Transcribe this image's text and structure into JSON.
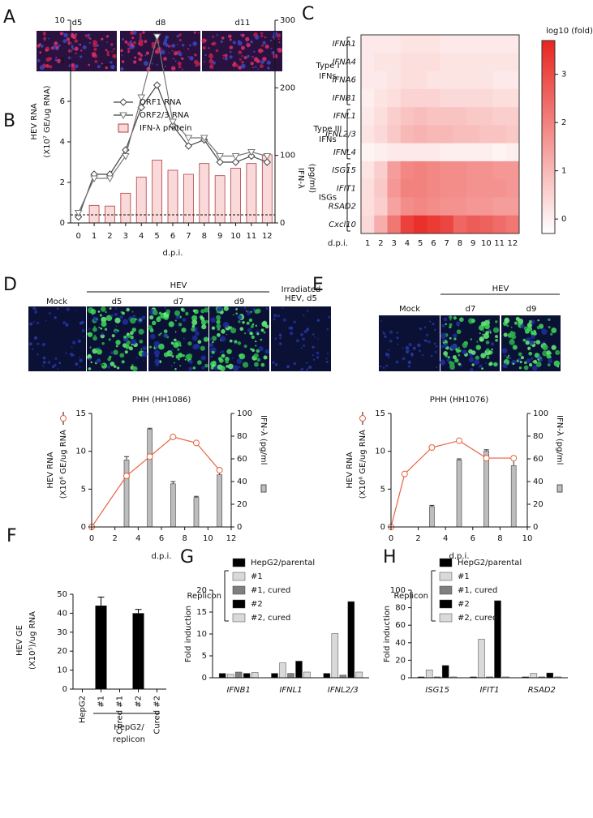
{
  "panel_labels": [
    "A",
    "B",
    "C",
    "D",
    "E",
    "F",
    "G",
    "H"
  ],
  "images": {
    "A": [
      "d5",
      "d8",
      "d11"
    ],
    "D": {
      "mock": "Mock",
      "group": "HEV",
      "days": [
        "d5",
        "d7",
        "d9"
      ],
      "irradiated": [
        "Irradiated",
        "HEV, d5"
      ]
    },
    "E": {
      "mock": "Mock",
      "group": "HEV",
      "days": [
        "d7",
        "d9"
      ]
    }
  },
  "chart_data": [
    {
      "type": "combo",
      "x": [
        0,
        1,
        2,
        3,
        4,
        5,
        6,
        7,
        8,
        9,
        10,
        11,
        12
      ],
      "xlim": [
        -0.5,
        12.5
      ],
      "xticks": [
        0,
        1,
        2,
        3,
        4,
        5,
        6,
        7,
        8,
        9,
        10,
        11,
        12
      ],
      "ylim": [
        0,
        10
      ],
      "yticks": [
        0,
        2,
        4,
        6,
        8,
        10
      ],
      "y2lim": [
        0,
        300
      ],
      "y2ticks": [
        0,
        100,
        200,
        300
      ],
      "x_label": "d.p.i.",
      "y_label": [
        "HEV RNA",
        "(X10⁷ GE/ug RNA)"
      ],
      "y2_label": [
        "IFN-λ",
        "(pg/ml)"
      ],
      "reference_line": 0.4,
      "series": [
        {
          "name": "ORF1 RNA",
          "kind": "line",
          "marker": "diamond",
          "color": "#444444",
          "values": [
            0.3,
            2.4,
            2.4,
            3.6,
            5.7,
            6.8,
            4.8,
            3.8,
            4.1,
            3.0,
            3.0,
            3.3,
            3.0
          ]
        },
        {
          "name": "ORF2/3 RNA",
          "kind": "line",
          "marker": "triangle",
          "color": "#777777",
          "values": [
            0.5,
            2.2,
            2.2,
            3.3,
            6.2,
            9.2,
            5.0,
            4.2,
            4.2,
            3.3,
            3.3,
            3.5,
            3.3
          ]
        },
        {
          "name": "IFN-λ protein",
          "kind": "bar",
          "axis": "y2",
          "color": "#f9d9d9",
          "values": [
            0,
            26,
            25,
            44,
            68,
            93,
            78,
            72,
            88,
            70,
            81,
            88,
            101
          ]
        }
      ]
    },
    {
      "type": "heatmap",
      "rows": [
        "IFNA1",
        "IFNA4",
        "IFNA6",
        "IFNB1",
        "IFNL1",
        "IFNL2/3",
        "IFNL4",
        "ISG15",
        "IFIT1",
        "RSAD2",
        "Cxcl10"
      ],
      "categories": [
        "1",
        "2",
        "3",
        "4",
        "5",
        "6",
        "7",
        "8",
        "9",
        "10",
        "11",
        "12"
      ],
      "values": [
        [
          0.1,
          0.1,
          0.1,
          0.2,
          0.2,
          0.2,
          0.1,
          0.1,
          0.1,
          0.1,
          0.1,
          0.1
        ],
        [
          0.1,
          0.2,
          0.2,
          0.3,
          0.3,
          0.3,
          0.2,
          0.2,
          0.2,
          0.2,
          0.2,
          0.2
        ],
        [
          0.1,
          0.1,
          0.2,
          0.3,
          0.3,
          0.2,
          0.2,
          0.2,
          0.2,
          0.2,
          0.1,
          0.1
        ],
        [
          0.0,
          0.2,
          0.3,
          0.5,
          0.5,
          0.5,
          0.4,
          0.4,
          0.4,
          0.4,
          0.3,
          0.3
        ],
        [
          0.1,
          0.3,
          0.6,
          0.8,
          0.9,
          0.8,
          0.8,
          0.8,
          0.7,
          0.7,
          0.6,
          0.6
        ],
        [
          0.2,
          0.4,
          0.7,
          1.0,
          1.1,
          1.0,
          1.0,
          0.9,
          0.9,
          0.8,
          0.8,
          0.7
        ],
        [
          -0.1,
          0.0,
          0.1,
          0.1,
          0.1,
          0.1,
          0.0,
          0.0,
          0.0,
          0.0,
          -0.1,
          0.0
        ],
        [
          0.2,
          0.6,
          1.5,
          1.9,
          2.0,
          1.9,
          1.8,
          1.8,
          1.7,
          1.7,
          1.6,
          1.6
        ],
        [
          0.3,
          0.7,
          1.6,
          2.0,
          2.0,
          1.9,
          1.8,
          1.8,
          1.7,
          1.7,
          1.7,
          1.6
        ],
        [
          0.3,
          0.6,
          1.4,
          1.8,
          1.9,
          1.8,
          1.7,
          1.7,
          1.6,
          1.6,
          1.5,
          1.5
        ],
        [
          0.4,
          1.2,
          2.2,
          3.2,
          3.5,
          3.3,
          3.1,
          2.5,
          2.7,
          2.6,
          2.4,
          2.2
        ]
      ],
      "groups": [
        {
          "label": [
            "Type I",
            "IFNs"
          ],
          "span": [
            0,
            3
          ]
        },
        {
          "label": [
            "Type III",
            "IFNs"
          ],
          "span": [
            4,
            6
          ]
        },
        {
          "label": [
            "ISGs"
          ],
          "span": [
            7,
            10
          ]
        }
      ],
      "x_label": "d.p.i.",
      "colorbar_label": "log10 (fold)",
      "clim": [
        -0.3,
        3.7
      ],
      "cticks": [
        0,
        1,
        2,
        3
      ],
      "color_low": "#ffffff",
      "color_high": "#e8251f"
    },
    {
      "type": "dual_axis",
      "title": "PHH (HH1086)",
      "x_label": "d.p.i.",
      "xlim": [
        0,
        12
      ],
      "xticks": [
        0,
        2,
        4,
        6,
        8,
        10,
        12
      ],
      "ylim": [
        0,
        15
      ],
      "yticks": [
        0,
        5,
        10,
        15
      ],
      "y2lim": [
        0,
        100
      ],
      "y2ticks": [
        0,
        20,
        40,
        60,
        80,
        100
      ],
      "y_label": [
        "HEV RNA",
        "(X10⁶ GE/ug RNA"
      ],
      "y2_label": "IFN-λ  (pg/ml",
      "series": [
        {
          "kind": "bar",
          "axis": "y2",
          "color": "#bdbdbd",
          "x": [
            3,
            5,
            7,
            9,
            11
          ],
          "values": [
            59,
            86,
            38,
            26,
            46
          ],
          "errors": [
            3,
            1,
            2,
            1,
            4
          ]
        },
        {
          "kind": "line",
          "color": "#e8623f",
          "x": [
            0,
            3,
            5,
            7,
            9,
            11
          ],
          "values": [
            0,
            6.75,
            9.3,
            11.9,
            11.1,
            7.5
          ]
        }
      ]
    },
    {
      "type": "dual_axis",
      "title": "PHH (HH1076)",
      "x_label": "d.p.i.",
      "xlim": [
        0,
        10
      ],
      "xticks": [
        0,
        2,
        4,
        6,
        8,
        10
      ],
      "ylim": [
        0,
        15
      ],
      "yticks": [
        0,
        5,
        10,
        15
      ],
      "y2lim": [
        0,
        100
      ],
      "y2ticks": [
        0,
        20,
        40,
        60,
        80,
        100
      ],
      "y_label": [
        "HEV RNA",
        "(X10⁶ GE/ug RNA"
      ],
      "y2_label": "IFN-λ  (pg/ml",
      "series": [
        {
          "kind": "bar",
          "axis": "y2",
          "color": "#bdbdbd",
          "x": [
            3,
            5,
            7,
            9
          ],
          "values": [
            18,
            59,
            67,
            54
          ],
          "errors": [
            1,
            1,
            1,
            5
          ]
        },
        {
          "kind": "line",
          "color": "#e8623f",
          "x": [
            0,
            1,
            3,
            5,
            7,
            9
          ],
          "values": [
            0,
            7.0,
            10.5,
            11.4,
            9.1,
            9.1
          ]
        }
      ]
    },
    {
      "type": "bar",
      "categories": [
        "HepG2",
        "#1",
        "Cured #1",
        "#2",
        "Cured #2"
      ],
      "values": [
        0,
        44,
        0,
        40,
        0
      ],
      "errors": [
        null,
        4.5,
        null,
        2,
        null
      ],
      "color": "#000000",
      "ylim": [
        0,
        50
      ],
      "yticks": [
        0,
        10,
        20,
        30,
        40,
        50
      ],
      "y_label": [
        "HEV GE",
        "(X10⁵)/ug RNA"
      ],
      "bracket_label": [
        "HepG2/",
        "replicon"
      ]
    },
    {
      "type": "grouped_bar",
      "categories": [
        "IFNB1",
        "IFNL1",
        "IFNL2/3"
      ],
      "ylim": [
        0,
        20
      ],
      "yticks": [
        0,
        5,
        10,
        15,
        20
      ],
      "y_label": "Fold induction",
      "legend_group": "Replicon",
      "series": [
        {
          "name": "HepG2/parental",
          "color": "#000000",
          "values": [
            1.0,
            1.0,
            1.0
          ]
        },
        {
          "name": "#1",
          "color": "#d9d9d9",
          "values": [
            0.8,
            3.4,
            10.1
          ]
        },
        {
          "name": "#1, cured",
          "color": "#7f7f7f",
          "values": [
            1.3,
            1.0,
            0.6
          ]
        },
        {
          "name": "#2",
          "color": "#000000",
          "values": [
            1.0,
            3.8,
            17.4
          ]
        },
        {
          "name": "#2, cured",
          "color": "#d9d9d9",
          "values": [
            1.2,
            1.3,
            1.3
          ]
        }
      ]
    },
    {
      "type": "grouped_bar",
      "categories": [
        "ISG15",
        "IFIT1",
        "RSAD2"
      ],
      "ylim": [
        0,
        100
      ],
      "yticks": [
        0,
        20,
        40,
        60,
        80,
        100
      ],
      "y_label": "Fold induction",
      "legend_group": "Replicon",
      "series": [
        {
          "name": "HepG2/parental",
          "color": "#000000",
          "values": [
            1,
            1,
            1
          ]
        },
        {
          "name": "#1",
          "color": "#d9d9d9",
          "values": [
            9,
            44,
            5
          ]
        },
        {
          "name": "#1, cured",
          "color": "#7f7f7f",
          "values": [
            1,
            1,
            1
          ]
        },
        {
          "name": "#2",
          "color": "#000000",
          "values": [
            14,
            88,
            5.5
          ]
        },
        {
          "name": "#2, cured",
          "color": "#d9d9d9",
          "values": [
            1,
            1,
            1
          ]
        }
      ]
    }
  ]
}
